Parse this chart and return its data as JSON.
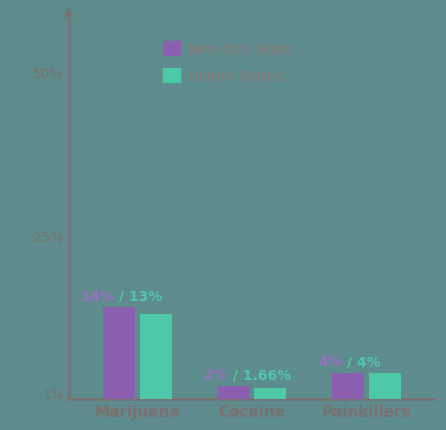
{
  "categories": [
    "Marijuana",
    "Cocaine",
    "Painkillers"
  ],
  "ny_values": [
    14,
    2,
    4
  ],
  "us_values": [
    13,
    1.66,
    4
  ],
  "ny_color": "#8b5fb0",
  "us_color": "#4ec9a8",
  "ny_label": "New York State",
  "us_label": "United States",
  "bar_labels_ny": [
    "14%",
    "2%",
    "4%"
  ],
  "bar_labels_us": [
    "13%",
    "1.66%",
    "4%"
  ],
  "yticks": [
    1,
    25,
    50
  ],
  "ytick_labels": [
    "1%",
    "25%",
    "50%"
  ],
  "ylim": [
    0,
    58
  ],
  "background_color": "#5e8b8b",
  "axis_color": "#7a7070",
  "legend_text_color": "#8a7878",
  "label_color_ny": "#9b70c0",
  "label_color_us": "#4ec9a8",
  "bar_width": 0.28,
  "legend_fontsize": 10,
  "tick_fontsize": 10,
  "xlabel_fontsize": 11,
  "annotation_fontsize": 10
}
